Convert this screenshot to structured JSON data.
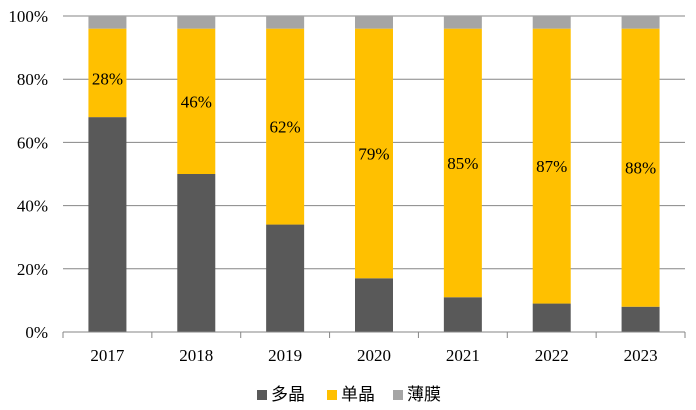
{
  "chart_data": {
    "type": "bar",
    "stacked": true,
    "title": "",
    "xlabel": "",
    "ylabel": "",
    "ylim": [
      0,
      100
    ],
    "yticks": [
      "0%",
      "20%",
      "40%",
      "60%",
      "80%",
      "100%"
    ],
    "categories": [
      "2017",
      "2018",
      "2019",
      "2020",
      "2021",
      "2022",
      "2023"
    ],
    "series": [
      {
        "name": "多晶",
        "color": "#595959",
        "values": [
          68,
          50,
          34,
          17,
          11,
          9,
          8
        ]
      },
      {
        "name": "单晶",
        "color": "#ffc000",
        "values": [
          28,
          46,
          62,
          79,
          85,
          87,
          88
        ]
      },
      {
        "name": "薄膜",
        "color": "#a5a5a5",
        "values": [
          4,
          4,
          4,
          4,
          4,
          4,
          4
        ]
      }
    ],
    "data_labels": [
      "28%",
      "46%",
      "62%",
      "79%",
      "85%",
      "87%",
      "88%"
    ],
    "grid": true,
    "legend_position": "bottom"
  }
}
